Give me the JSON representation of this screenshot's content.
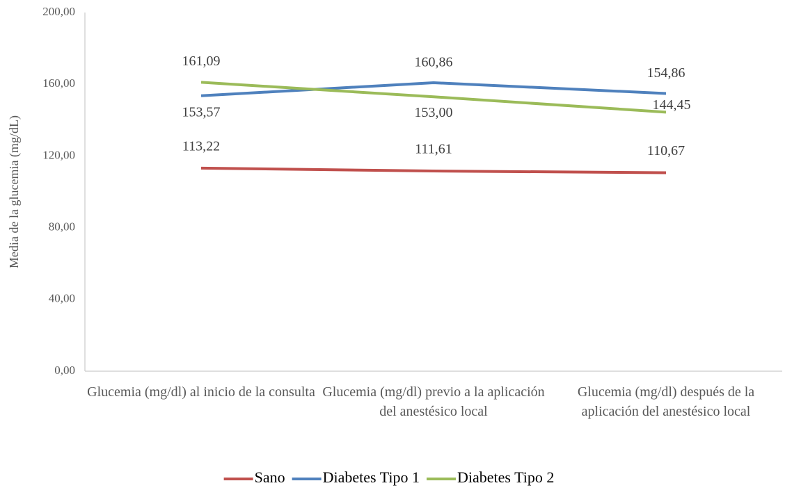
{
  "chart_data": {
    "type": "line",
    "ylabel": "Media de la glucemia (mg/dL)",
    "categories": [
      "Glucemia (mg/dl) al inicio de la consulta",
      "Glucemia (mg/dl) previo a la aplicación del anestésico local",
      "Glucemia (mg/dl) después de la aplicación del anestésico local"
    ],
    "series": [
      {
        "name": "Sano",
        "color": "#c0504d",
        "values": [
          113.22,
          111.61,
          110.67
        ],
        "value_labels": [
          "113,22",
          "111,61",
          "110,67"
        ]
      },
      {
        "name": "Diabetes Tipo 1",
        "color": "#4f81bd",
        "values": [
          153.57,
          160.86,
          154.86
        ],
        "value_labels": [
          "153,57",
          "160,86",
          "154,86"
        ]
      },
      {
        "name": "Diabetes Tipo 2",
        "color": "#9bbb59",
        "values": [
          161.09,
          153.0,
          144.45
        ],
        "value_labels": [
          "161,09",
          "153,00",
          "144,45"
        ]
      }
    ],
    "ylim": [
      0,
      200
    ],
    "yticks": [
      {
        "value": 0,
        "label": "0,00"
      },
      {
        "value": 40,
        "label": "40,00"
      },
      {
        "value": 80,
        "label": "80,00"
      },
      {
        "value": 120,
        "label": "120,00"
      },
      {
        "value": 160,
        "label": "160,00"
      },
      {
        "value": 200,
        "label": "200,00"
      }
    ],
    "grid": false,
    "legend": "bottom"
  }
}
